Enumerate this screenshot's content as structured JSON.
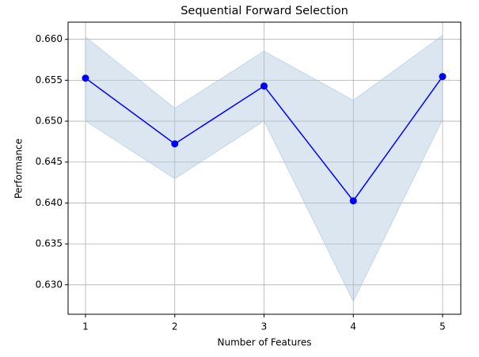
{
  "chart_data": {
    "type": "line",
    "title": "Sequential Forward Selection",
    "x_label": "Number of Features",
    "y_label": "Performance",
    "x": [
      1,
      2,
      3,
      4,
      5
    ],
    "values": [
      0.65526,
      0.64723,
      0.65429,
      0.64026,
      0.65545
    ],
    "upper": [
      0.66029,
      0.65158,
      0.65855,
      0.65255,
      0.66048
    ],
    "lower": [
      0.65003,
      0.64297,
      0.65003,
      0.62797,
      0.65022
    ],
    "color": "#0000ff",
    "band_color": "#a9c4dc",
    "xlim": [
      0.805,
      5.204
    ],
    "xticks": [
      1,
      2,
      3,
      4,
      5
    ],
    "ylim": [
      0.6264,
      0.6621
    ],
    "yticks": [
      {
        "value": 0.63,
        "label": "0.630"
      },
      0.635,
      {
        "value": 0.64,
        "label": "0.640"
      },
      0.645,
      {
        "value": 0.65,
        "label": "0.650"
      },
      0.655,
      {
        "value": 0.66,
        "label": "0.660"
      }
    ],
    "grid": true
  }
}
